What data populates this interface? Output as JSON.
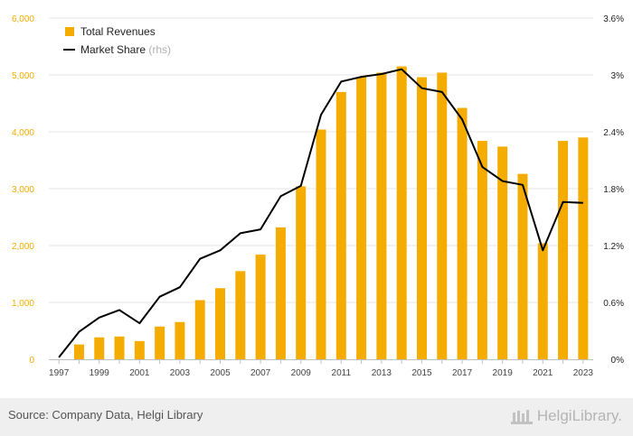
{
  "chart_data": {
    "type": "bar+line",
    "categories": [
      "1997",
      "1998",
      "1999",
      "2000",
      "2001",
      "2002",
      "2003",
      "2004",
      "2005",
      "2006",
      "2007",
      "2008",
      "2009",
      "2010",
      "2011",
      "2012",
      "2013",
      "2014",
      "2015",
      "2016",
      "2017",
      "2018",
      "2019",
      "2020",
      "2021",
      "2022",
      "2023"
    ],
    "x_tick_labels": [
      "1997",
      "1999",
      "2001",
      "2003",
      "2005",
      "2007",
      "2009",
      "2011",
      "2013",
      "2015",
      "2017",
      "2019",
      "2021",
      "2023"
    ],
    "series": [
      {
        "name": "Total Revenues",
        "type": "bar",
        "axis": "left",
        "color": "#f5ac00",
        "values": [
          null,
          260,
          385,
          400,
          320,
          575,
          655,
          1040,
          1250,
          1550,
          1840,
          2320,
          3040,
          4040,
          4700,
          4960,
          5040,
          5150,
          4960,
          5040,
          4420,
          3840,
          3740,
          3260,
          2040,
          3840,
          3900
        ]
      },
      {
        "name": "Market Share",
        "type": "line",
        "axis": "right",
        "color": "#000000",
        "values": [
          0.02,
          0.29,
          0.44,
          0.52,
          0.38,
          0.66,
          0.76,
          1.06,
          1.15,
          1.33,
          1.37,
          1.72,
          1.83,
          2.58,
          2.93,
          2.98,
          3.01,
          3.06,
          2.86,
          2.82,
          2.53,
          2.03,
          1.88,
          1.84,
          1.15,
          1.66,
          1.65
        ]
      }
    ],
    "legend": {
      "revenues_label": "Total Revenues",
      "share_label": "Market Share",
      "share_suffix": "(rhs)",
      "position": "top-left"
    },
    "y_left": {
      "lim": [
        0,
        6000
      ],
      "ticks": [
        0,
        1000,
        2000,
        3000,
        4000,
        5000,
        6000
      ],
      "tick_labels": [
        "0",
        "1,000",
        "2,000",
        "3,000",
        "4,000",
        "5,000",
        "6,000"
      ],
      "color": "#f5ac00"
    },
    "y_right": {
      "lim": [
        0,
        3.6
      ],
      "ticks": [
        0,
        0.6,
        1.2,
        1.8,
        2.4,
        3.0,
        3.6
      ],
      "tick_labels": [
        "0%",
        "0.6%",
        "1.2%",
        "1.8%",
        "2.4%",
        "3%",
        "3.6%"
      ]
    },
    "grid": "horizontal",
    "grid_color": "#e6e6e6"
  },
  "footer": {
    "source": "Source: Company Data, Helgi Library",
    "logo_text": "HelgiLibrary."
  }
}
